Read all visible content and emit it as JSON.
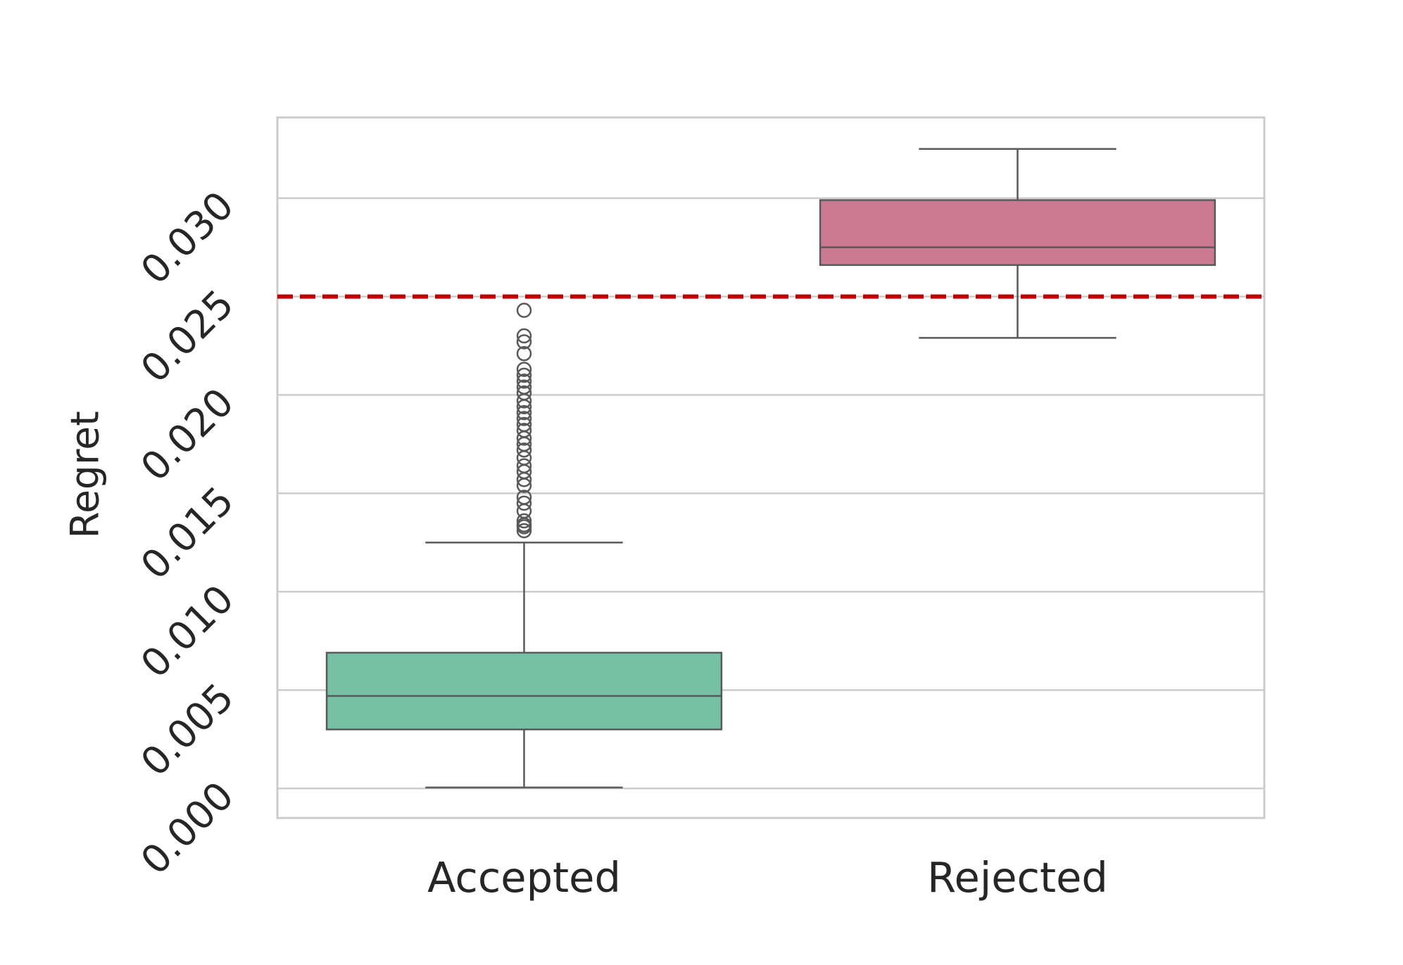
{
  "chart_data": {
    "type": "box",
    "title": "",
    "xlabel": "",
    "ylabel": "Regret",
    "ylim": [
      -0.0015,
      0.0341
    ],
    "yticks": [
      0.0,
      0.005,
      0.01,
      0.015,
      0.02,
      0.025,
      0.03
    ],
    "ytick_labels": [
      "0.000",
      "0.005",
      "0.010",
      "0.015",
      "0.020",
      "0.025",
      "0.030"
    ],
    "grid": true,
    "categories": [
      "Accepted",
      "Rejected"
    ],
    "boxes": [
      {
        "category": "Accepted",
        "color": "#76c0a6",
        "whisker_low": 5e-05,
        "q1": 0.003,
        "median": 0.0047,
        "q3": 0.0069,
        "whisker_high": 0.0125,
        "outliers": [
          0.0131,
          0.0133,
          0.0134,
          0.0136,
          0.0141,
          0.0145,
          0.0148,
          0.0154,
          0.0157,
          0.0161,
          0.0164,
          0.0168,
          0.0172,
          0.0175,
          0.0178,
          0.0182,
          0.0185,
          0.0188,
          0.0191,
          0.0194,
          0.0197,
          0.0201,
          0.0204,
          0.0207,
          0.021,
          0.0213,
          0.0221,
          0.0227,
          0.023,
          0.0243
        ]
      },
      {
        "category": "Rejected",
        "color": "#cc7a93",
        "whisker_low": 0.0229,
        "q1": 0.0266,
        "median": 0.0275,
        "q3": 0.0299,
        "whisker_high": 0.0325,
        "outliers": []
      }
    ],
    "threshold_line": {
      "value": 0.025,
      "color": "#c00000",
      "style": "dashed"
    }
  }
}
